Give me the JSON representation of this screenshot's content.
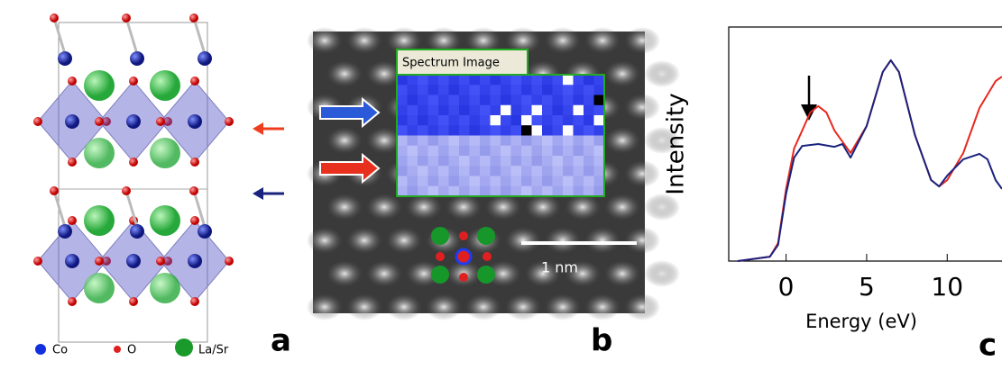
{
  "panels": {
    "a": {
      "label": "a",
      "legend": [
        "Co",
        "O",
        "La/Sr"
      ]
    },
    "b": {
      "label": "b",
      "inset_title": "Spectrum Image",
      "scale_bar": "1 nm"
    },
    "c": {
      "label": "c"
    }
  },
  "chart_data": {
    "type": "line",
    "y_label": "Intensity",
    "x_label": "Energy (eV)",
    "xlim": [
      -3,
      13.4
    ],
    "xticks": [
      0,
      5,
      10
    ],
    "ylim": [
      0,
      100
    ],
    "series": [
      {
        "color": "#e8281e",
        "x": [
          -3,
          -1,
          -0.5,
          0,
          0.5,
          1,
          1.5,
          2,
          2.5,
          3,
          4,
          5,
          6,
          6.5,
          7,
          8,
          9,
          9.5,
          10,
          11,
          12,
          13,
          13.4
        ],
        "values": [
          0,
          1.9,
          7.7,
          30.8,
          48.1,
          55.8,
          63.5,
          66.2,
          63.5,
          55.8,
          46.2,
          57.7,
          80.8,
          85.8,
          80.8,
          53.8,
          34.6,
          31.9,
          34.6,
          46.2,
          65.4,
          76.9,
          78.8
        ]
      },
      {
        "color": "#1a237e",
        "x": [
          -3,
          -1,
          -0.5,
          0,
          0.5,
          1,
          2,
          3,
          3.5,
          4,
          5,
          6,
          6.5,
          7,
          8,
          9,
          9.5,
          10,
          11,
          12,
          12.5,
          13,
          13.4
        ],
        "values": [
          0,
          1.9,
          6.9,
          28.8,
          44.2,
          49.2,
          50,
          48.8,
          50,
          44.2,
          57.7,
          80.8,
          85.8,
          80.8,
          53.8,
          34.6,
          31.9,
          36.5,
          43.5,
          45.8,
          43.5,
          34.6,
          30.8
        ]
      }
    ]
  }
}
